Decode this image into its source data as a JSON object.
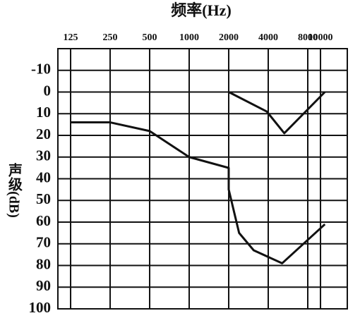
{
  "chart_data": {
    "type": "line",
    "title": "频率(Hz)",
    "y_label": "声级(dB)",
    "x_scale": "log",
    "y_inverted": true,
    "grid": true,
    "color": "#111111",
    "xlim": [
      100,
      16000
    ],
    "xticks": [
      125,
      250,
      500,
      1000,
      2000,
      4000,
      8000,
      10000
    ],
    "ylim": [
      -20,
      100
    ],
    "yticks": [
      -10,
      0,
      10,
      20,
      30,
      40,
      50,
      60,
      70,
      80,
      90,
      100
    ],
    "series": [
      {
        "x": [
          125,
          250,
          500,
          1000,
          2000,
          2000,
          2400,
          3100,
          5100,
          10800
        ],
        "values": [
          14,
          14,
          18,
          30,
          35,
          45,
          65,
          73,
          79,
          61
        ]
      },
      {
        "x": [
          2000,
          3900,
          5300,
          10800
        ],
        "values": [
          0,
          9,
          19,
          0
        ]
      }
    ]
  }
}
